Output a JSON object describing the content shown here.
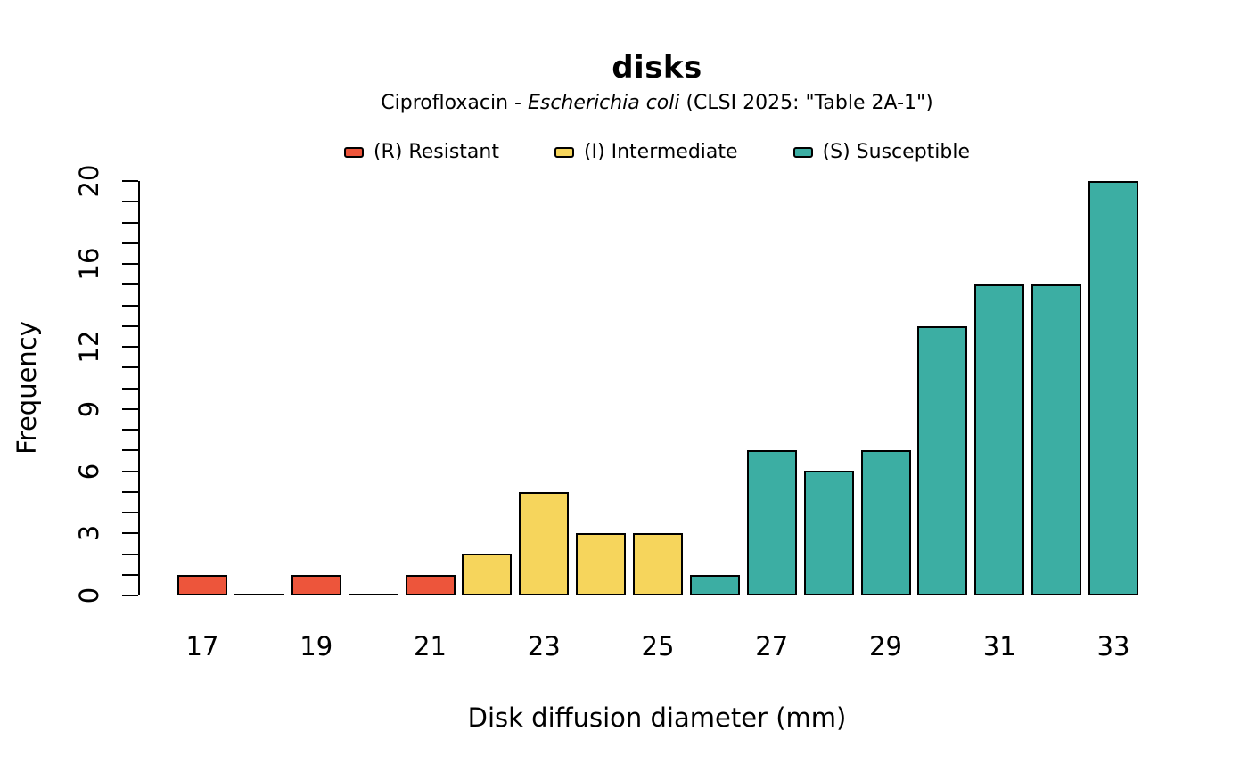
{
  "title": "disks",
  "subtitle": {
    "prefix": "Ciprofloxacin - ",
    "italic": "Escherichia coli",
    "suffix": " (CLSI 2025: \"Table 2A-1\")"
  },
  "legend": [
    {
      "key": "R",
      "label": "(R) Resistant",
      "color": "#ED553B"
    },
    {
      "key": "I",
      "label": "(I) Intermediate",
      "color": "#F6D55C"
    },
    {
      "key": "S",
      "label": "(S) Susceptible",
      "color": "#3CAEA3"
    }
  ],
  "chart_data": {
    "type": "bar",
    "title": "disks",
    "subtitle": "Ciprofloxacin - Escherichia coli (CLSI 2025: \"Table 2A-1\")",
    "xlabel": "Disk diffusion diameter (mm)",
    "ylabel": "Frequency",
    "x": [
      17,
      18,
      19,
      20,
      21,
      22,
      23,
      24,
      25,
      26,
      27,
      28,
      29,
      30,
      31,
      32,
      33
    ],
    "values": [
      1,
      0,
      1,
      0,
      1,
      2,
      5,
      3,
      3,
      1,
      7,
      6,
      7,
      13,
      15,
      15,
      20
    ],
    "bar_categories": [
      "R",
      "R",
      "R",
      "R",
      "R",
      "I",
      "I",
      "I",
      "I",
      "S",
      "S",
      "S",
      "S",
      "S",
      "S",
      "S",
      "S"
    ],
    "colors": {
      "R": "#ED553B",
      "I": "#F6D55C",
      "S": "#3CAEA3"
    },
    "ylim": [
      0,
      20
    ],
    "y_tick_labels": [
      0,
      3,
      6,
      9,
      12,
      16,
      20
    ],
    "y_minor_tick_step": 1,
    "x_tick_labels": [
      17,
      19,
      21,
      23,
      25,
      27,
      29,
      31,
      33
    ],
    "legend_position": "top",
    "grid": false
  }
}
